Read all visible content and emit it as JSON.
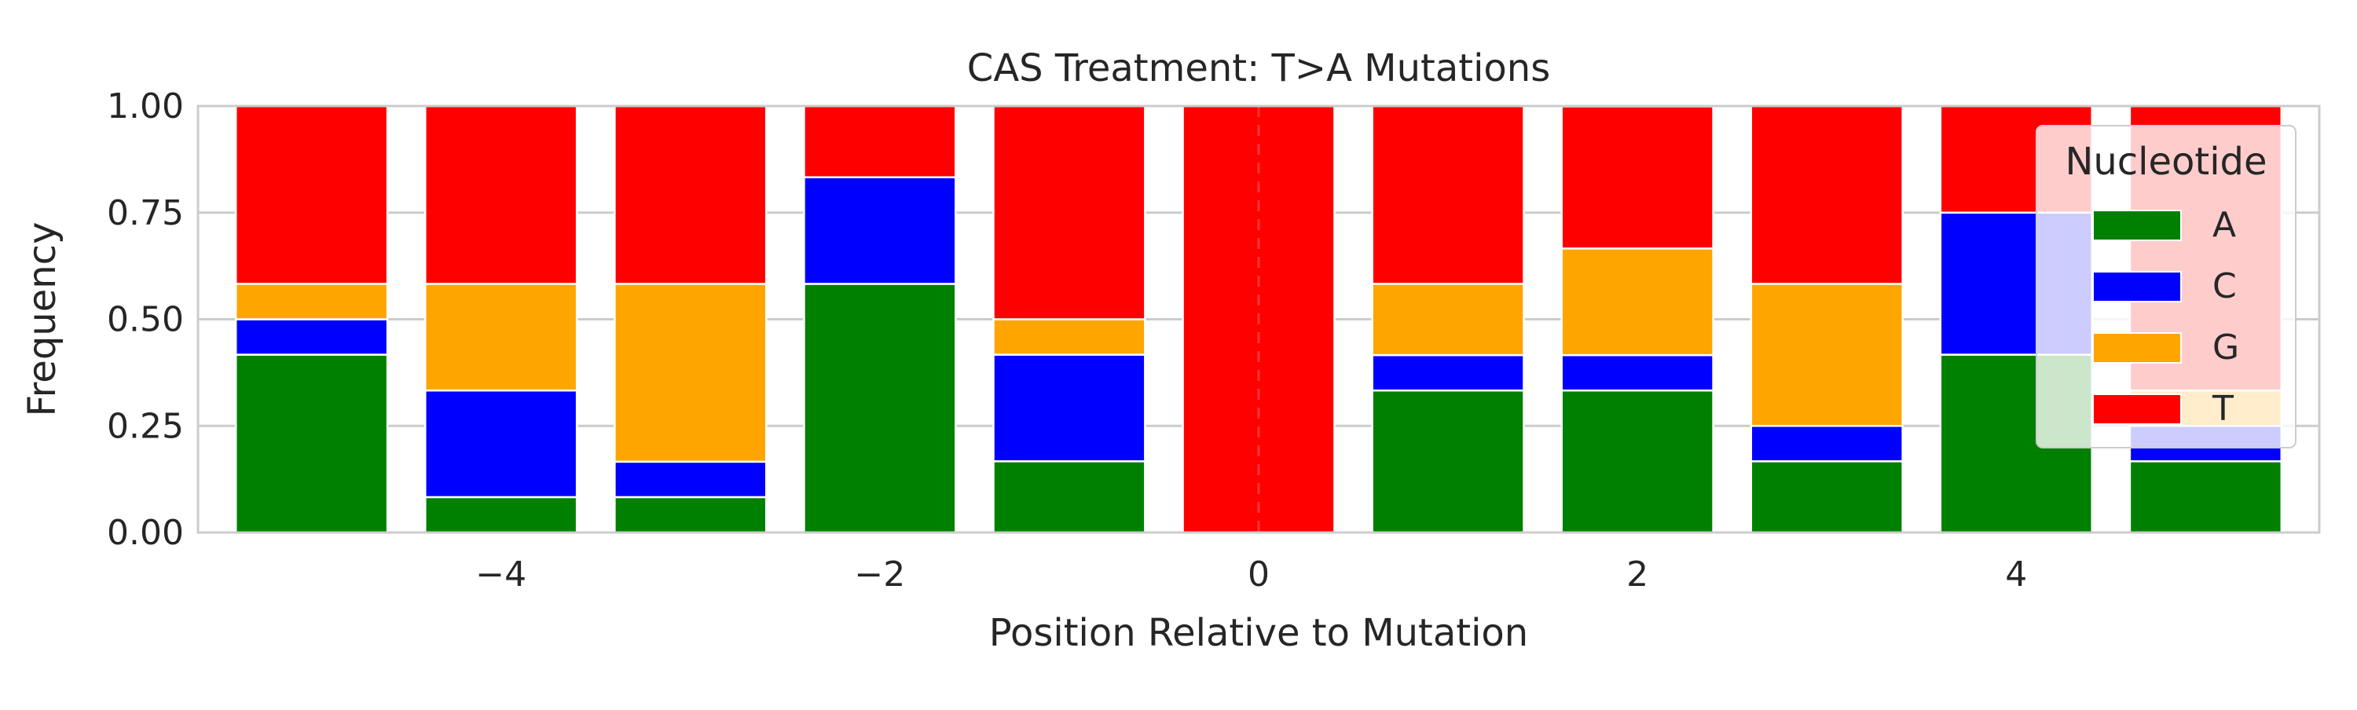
{
  "chart_data": {
    "type": "bar",
    "stacked": true,
    "title": "CAS Treatment: T>A Mutations",
    "xlabel": "Position Relative to Mutation",
    "ylabel": "Frequency",
    "x": [
      -5,
      -4,
      -3,
      -2,
      -1,
      0,
      1,
      2,
      3,
      4,
      5
    ],
    "xlim": [
      -5.6,
      5.6
    ],
    "ylim": [
      0,
      1
    ],
    "xticks": [
      -4,
      -2,
      0,
      2,
      4
    ],
    "xtick_labels": [
      "−4",
      "−2",
      "0",
      "2",
      "4"
    ],
    "yticks": [
      0,
      0.25,
      0.5,
      0.75,
      1.0
    ],
    "ytick_labels": [
      "0.00",
      "0.25",
      "0.50",
      "0.75",
      "1.00"
    ],
    "grid": true,
    "reference_line": {
      "x": 0,
      "style": "dashed",
      "color": "#ff4d4d"
    },
    "legend": {
      "title": "Nucleotide",
      "placement": "upper right"
    },
    "series": [
      {
        "name": "A",
        "color": "#008000",
        "values": [
          0.417,
          0.083,
          0.083,
          0.583,
          0.167,
          0.0,
          0.333,
          0.333,
          0.167,
          0.417,
          0.167
        ]
      },
      {
        "name": "C",
        "color": "#0000ff",
        "values": [
          0.083,
          0.25,
          0.083,
          0.25,
          0.25,
          0.0,
          0.083,
          0.083,
          0.083,
          0.333,
          0.083
        ]
      },
      {
        "name": "G",
        "color": "#ffa500",
        "values": [
          0.083,
          0.25,
          0.417,
          0.0,
          0.083,
          0.0,
          0.167,
          0.25,
          0.333,
          0.0,
          0.083
        ]
      },
      {
        "name": "T",
        "color": "#ff0000",
        "values": [
          0.417,
          0.417,
          0.417,
          0.167,
          0.5,
          1.0,
          0.417,
          0.333,
          0.417,
          0.25,
          0.667
        ]
      }
    ]
  }
}
